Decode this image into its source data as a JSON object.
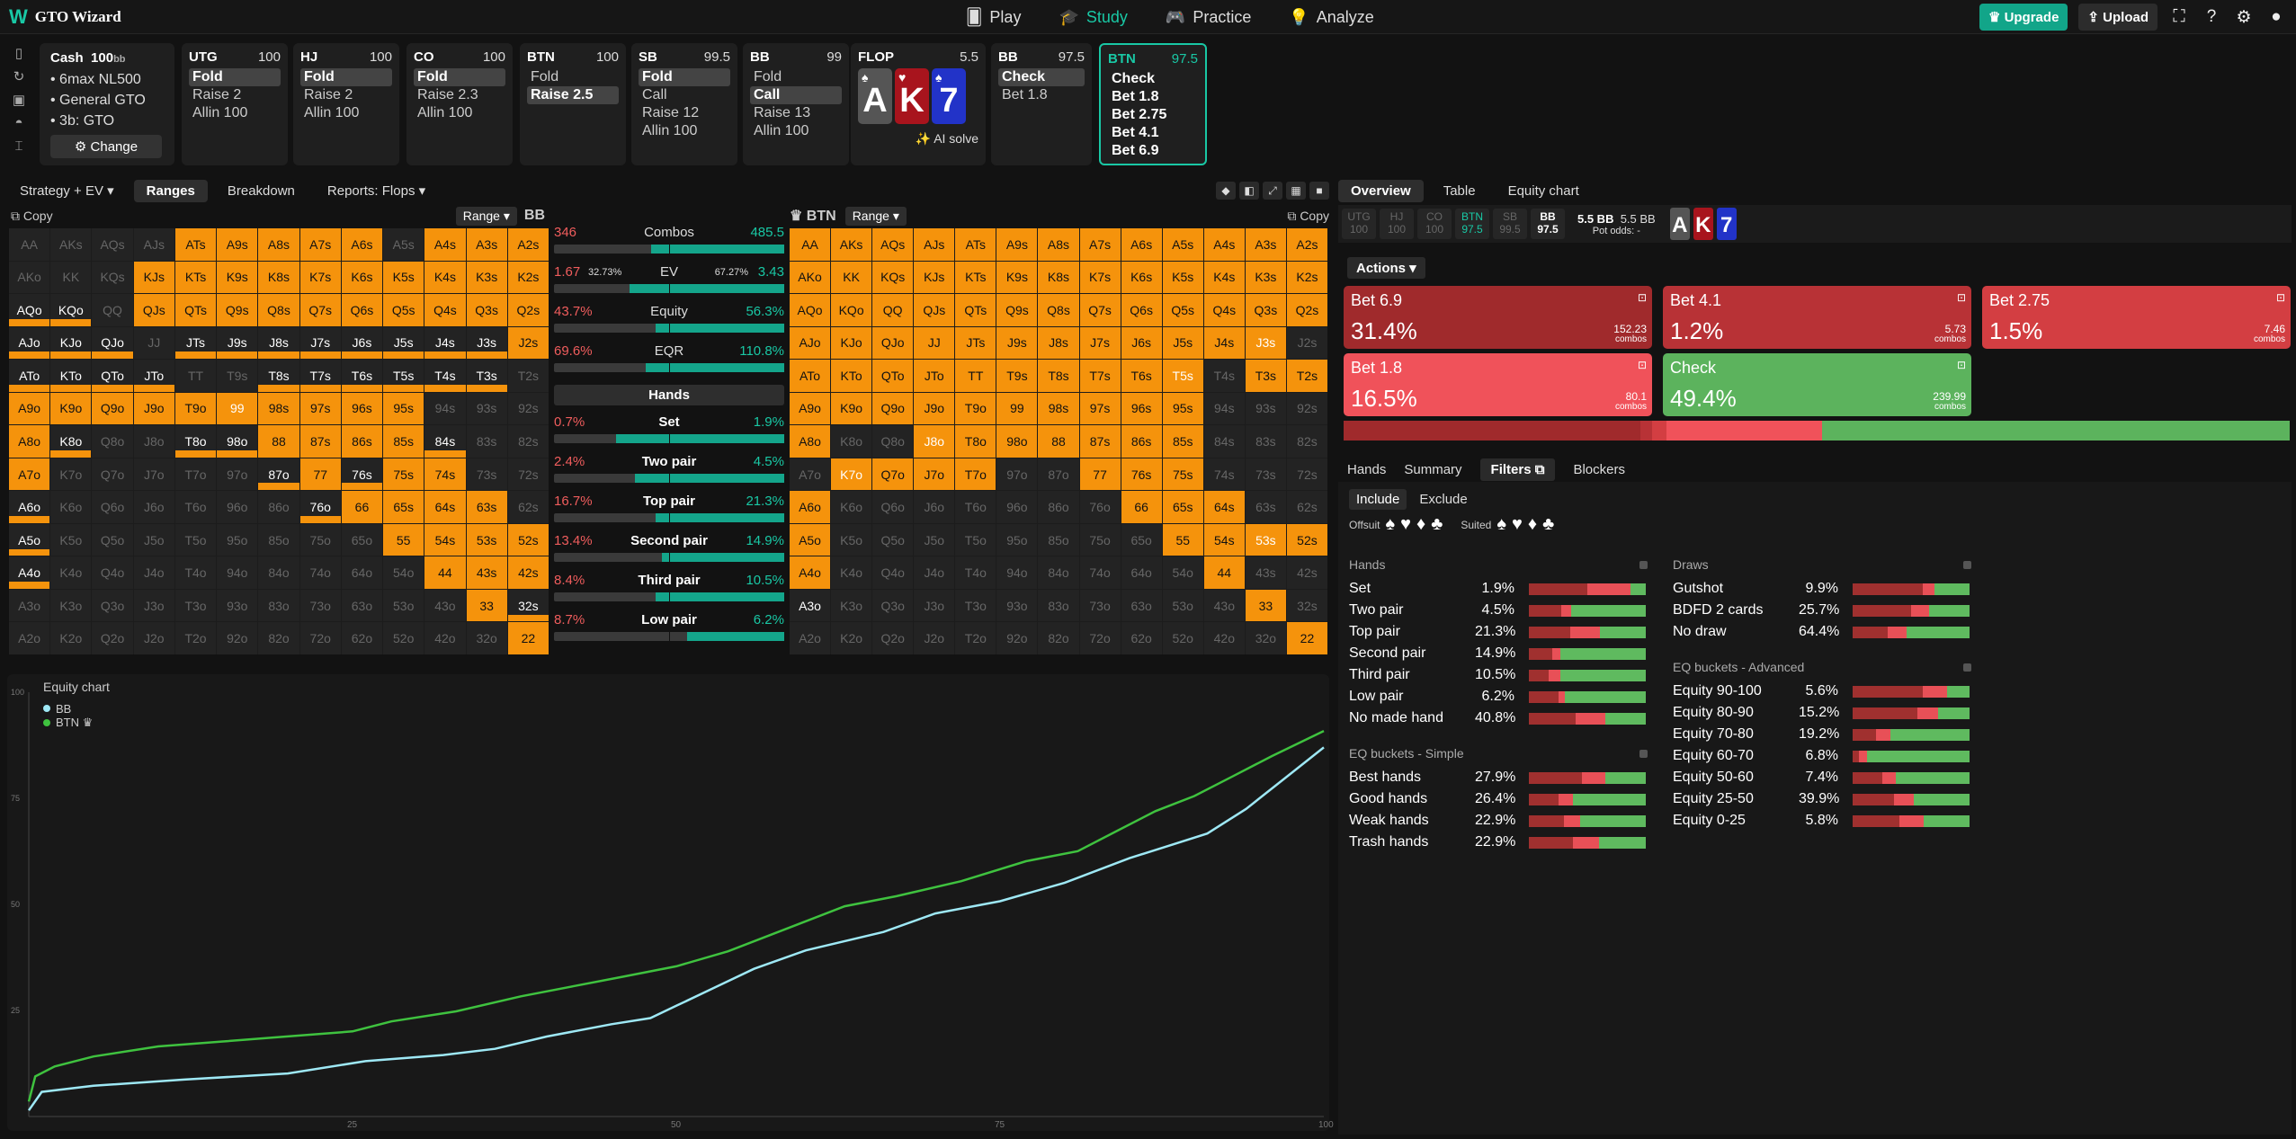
{
  "app": {
    "logo": "GTO Wizard",
    "nav": [
      {
        "label": "Play",
        "icon": "cards-icon"
      },
      {
        "label": "Study",
        "icon": "graduation-icon"
      },
      {
        "label": "Practice",
        "icon": "gamepad-icon"
      },
      {
        "label": "Analyze",
        "icon": "lightbulb-icon"
      }
    ],
    "upgrade": "Upgrade",
    "upload": "Upload"
  },
  "game": {
    "title": "Cash",
    "stack": "100",
    "stack_unit": "bb",
    "lines": [
      "6max NL500",
      "General GTO",
      "3b: GTO"
    ],
    "change": "Change"
  },
  "players": [
    {
      "pos": "UTG",
      "stack": "100",
      "options": [
        "Fold",
        "Raise 2",
        "Allin 100"
      ],
      "selected": 0
    },
    {
      "pos": "HJ",
      "stack": "100",
      "options": [
        "Fold",
        "Raise 2",
        "Allin 100"
      ],
      "selected": 0
    },
    {
      "pos": "CO",
      "stack": "100",
      "options": [
        "Fold",
        "Raise 2.3",
        "Allin 100"
      ],
      "selected": 0
    },
    {
      "pos": "BTN",
      "stack": "100",
      "options": [
        "Fold",
        "Raise 2.5"
      ],
      "selected": 1
    },
    {
      "pos": "SB",
      "stack": "99.5",
      "options": [
        "Fold",
        "Call",
        "Raise 12",
        "Allin 100"
      ],
      "selected": 0
    },
    {
      "pos": "BB",
      "stack": "99",
      "options": [
        "Fold",
        "Call",
        "Raise 13",
        "Allin 100"
      ],
      "selected": 1
    }
  ],
  "flop": {
    "label": "FLOP",
    "pot": "5.5",
    "cards": [
      {
        "rank": "A",
        "suit": "♠",
        "color": "#555"
      },
      {
        "rank": "K",
        "suit": "♥",
        "color": "#a8141d"
      },
      {
        "rank": "7",
        "suit": "♠",
        "color": "#2233c8"
      }
    ],
    "ai": "AI solve"
  },
  "bb_card": {
    "pos": "BB",
    "stack": "97.5",
    "options": [
      "Check",
      "Bet 1.8"
    ],
    "selected": 0
  },
  "btn_card": {
    "pos": "BTN",
    "stack": "97.5",
    "options": [
      "Check",
      "Bet 1.8",
      "Bet 2.75",
      "Bet 4.1",
      "Bet 6.9"
    ]
  },
  "left_tabs": [
    "Strategy + EV",
    "Ranges",
    "Breakdown",
    "Reports: Flops"
  ],
  "left_tab_active": 1,
  "range_left": {
    "copy": "Copy",
    "dd": "Range",
    "pos": "BB"
  },
  "range_right": {
    "copy": "Copy",
    "dd": "Range",
    "pos": "BTN"
  },
  "stats": {
    "combos": {
      "l": "346",
      "c": "Combos",
      "r": "485.5",
      "g": 0.58
    },
    "ev": {
      "l": "1.67",
      "ls": "32.73%",
      "c": "EV",
      "rs": "67.27%",
      "r": "3.43",
      "g": 0.67
    },
    "equity": {
      "l": "43.7%",
      "c": "Equity",
      "r": "56.3%",
      "g": 0.56
    },
    "eqr": {
      "l": "69.6%",
      "c": "EQR",
      "r": "110.8%",
      "g": 0.6
    },
    "hands_dd": "Hands",
    "hands": [
      {
        "l": "0.7%",
        "c": "Set",
        "r": "1.9%",
        "g": 0.73
      },
      {
        "l": "2.4%",
        "c": "Two pair",
        "r": "4.5%",
        "g": 0.65
      },
      {
        "l": "16.7%",
        "c": "Top pair",
        "r": "21.3%",
        "g": 0.56
      },
      {
        "l": "13.4%",
        "c": "Second pair",
        "r": "14.9%",
        "g": 0.53
      },
      {
        "l": "8.4%",
        "c": "Third pair",
        "r": "10.5%",
        "g": 0.56
      },
      {
        "l": "8.7%",
        "c": "Low pair",
        "r": "6.2%",
        "g": 0.42
      }
    ]
  },
  "equity_chart": {
    "title": "Equity chart",
    "legend": [
      "BB",
      "BTN ♛"
    ],
    "yticks": [
      "100",
      "75",
      "50",
      "25"
    ],
    "xticks": [
      "25",
      "50",
      "75",
      "100"
    ]
  },
  "right_tabs": [
    "Overview",
    "Table",
    "Equity chart"
  ],
  "positions": [
    {
      "p": "UTG",
      "s": "100"
    },
    {
      "p": "HJ",
      "s": "100"
    },
    {
      "p": "CO",
      "s": "100"
    },
    {
      "p": "BTN",
      "s": "97.5"
    },
    {
      "p": "SB",
      "s": "99.5"
    },
    {
      "p": "BB",
      "s": "97.5"
    }
  ],
  "pot": {
    "a": "5.5 BB",
    "b": "5.5 BB",
    "odds": "Pot odds:",
    "odds_v": "-"
  },
  "actions_dd": "Actions",
  "actions": [
    {
      "name": "Bet 6.9",
      "pct": "31.4%",
      "combos": "152.23",
      "color": "#a02a2c"
    },
    {
      "name": "Bet 4.1",
      "pct": "1.2%",
      "combos": "5.73",
      "color": "#b83236"
    },
    {
      "name": "Bet 2.75",
      "pct": "1.5%",
      "combos": "7.46",
      "color": "#d33e42"
    },
    {
      "name": "Bet 1.8",
      "pct": "16.5%",
      "combos": "80.1",
      "color": "#f0525a"
    },
    {
      "name": "Check",
      "pct": "49.4%",
      "combos": "239.99",
      "color": "#5cb35d"
    }
  ],
  "combos_word": "combos",
  "filter_tabs": [
    "Hands",
    "Summary",
    "Filters",
    "Blockers"
  ],
  "include": "Include",
  "exclude": "Exclude",
  "offsuit": "Offsuit",
  "suited": "Suited",
  "hands_f": {
    "title": "Hands",
    "rows": [
      [
        "Set",
        "1.9%"
      ],
      [
        "Two pair",
        "4.5%"
      ],
      [
        "Top pair",
        "21.3%"
      ],
      [
        "Second pair",
        "14.9%"
      ],
      [
        "Third pair",
        "10.5%"
      ],
      [
        "Low pair",
        "6.2%"
      ],
      [
        "No made hand",
        "40.8%"
      ]
    ]
  },
  "eq_simple": {
    "title": "EQ buckets - Simple",
    "rows": [
      [
        "Best hands",
        "27.9%"
      ],
      [
        "Good hands",
        "26.4%"
      ],
      [
        "Weak hands",
        "22.9%"
      ],
      [
        "Trash hands",
        "22.9%"
      ]
    ]
  },
  "draws": {
    "title": "Draws",
    "rows": [
      [
        "Gutshot",
        "9.9%"
      ],
      [
        "BDFD 2 cards",
        "25.7%"
      ],
      [
        "No draw",
        "64.4%"
      ]
    ]
  },
  "eq_adv": {
    "title": "EQ buckets - Advanced",
    "rows": [
      [
        "Equity 90-100",
        "5.6%"
      ],
      [
        "Equity 80-90",
        "15.2%"
      ],
      [
        "Equity 70-80",
        "19.2%"
      ],
      [
        "Equity 60-70",
        "6.8%"
      ],
      [
        "Equity 50-60",
        "7.4%"
      ],
      [
        "Equity 25-50",
        "39.9%"
      ],
      [
        "Equity 0-25",
        "5.8%"
      ]
    ]
  }
}
